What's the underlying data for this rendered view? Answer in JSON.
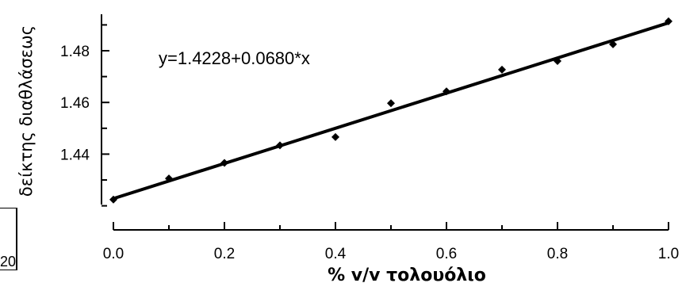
{
  "chart_data": {
    "type": "scatter",
    "xlabel": "% v/v τολουόλιο",
    "ylabel": "δείκτης διαθλάσεως",
    "annotation": "y=1.4228+0.0680*x",
    "xlim": [
      0,
      1.0
    ],
    "ylim": [
      1.4205,
      1.4935
    ],
    "xticks": [
      "0.0",
      "0.2",
      "0.4",
      "0.6",
      "0.8",
      "1.0"
    ],
    "xtick_values": [
      0.0,
      0.2,
      0.4,
      0.6,
      0.8,
      1.0
    ],
    "yticks": [
      "1.44",
      "1.46",
      "1.48"
    ],
    "ytick_values": [
      1.44,
      1.46,
      1.48
    ],
    "points": [
      {
        "x": 0.0,
        "y": 1.4224
      },
      {
        "x": 0.1,
        "y": 1.4306
      },
      {
        "x": 0.2,
        "y": 1.4366
      },
      {
        "x": 0.3,
        "y": 1.4434
      },
      {
        "x": 0.4,
        "y": 1.4466
      },
      {
        "x": 0.5,
        "y": 1.4597
      },
      {
        "x": 0.6,
        "y": 1.4643
      },
      {
        "x": 0.7,
        "y": 1.4727
      },
      {
        "x": 0.8,
        "y": 1.476
      },
      {
        "x": 0.9,
        "y": 1.4825
      },
      {
        "x": 1.0,
        "y": 1.4914
      }
    ],
    "fit": {
      "intercept": 1.4228,
      "slope": 0.068
    },
    "marker": "diamond",
    "grid": false,
    "legend": "none"
  },
  "corner_label": "20"
}
